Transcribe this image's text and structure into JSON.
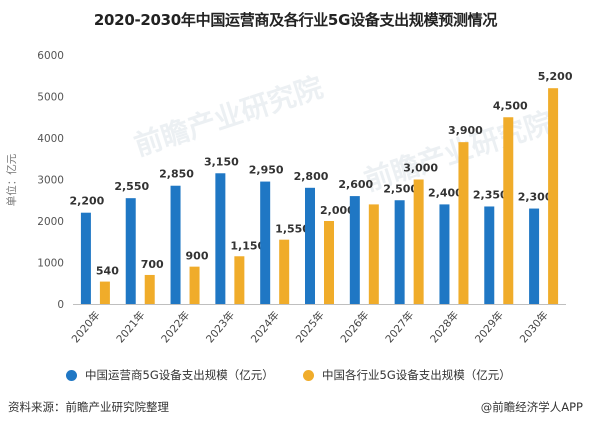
{
  "chart_data": {
    "type": "bar",
    "title": "2020-2030年中国运营商及各行业5G设备支出规模预测情况",
    "ylabel": "单位：亿元",
    "ylim": [
      0,
      6000
    ],
    "yticks": [
      0,
      1000,
      2000,
      3000,
      4000,
      5000,
      6000
    ],
    "categories": [
      "2020年",
      "2021年",
      "2022年",
      "2023年",
      "2024年",
      "2025年",
      "2026年",
      "2027年",
      "2028年",
      "2029年",
      "2030年"
    ],
    "series": [
      {
        "name": "中国运营商5G设备支出规模（亿元）",
        "color": "#1f77c4",
        "values": [
          2200,
          2550,
          2850,
          3150,
          2950,
          2800,
          2600,
          2500,
          2400,
          2350,
          2300
        ],
        "labels": [
          "2,200",
          "2,550",
          "2,850",
          "3,150",
          "2,950",
          "2,800",
          "2,600",
          "2,500",
          "2,400",
          "2,350",
          "2,300"
        ]
      },
      {
        "name": "中国各行业5G设备支出规模（亿元）",
        "color": "#f0ac2a",
        "values": [
          540,
          700,
          900,
          1150,
          1550,
          2000,
          2400,
          3000,
          3900,
          4500,
          5200
        ],
        "labels": [
          "540",
          "700",
          "900",
          "1,150",
          "1,550",
          "2,000",
          "",
          "3,000",
          "3,900",
          "4,500",
          "5,200"
        ]
      }
    ],
    "grid": false,
    "legend": "bottom"
  },
  "footer": {
    "source": "资料来源：前瞻产业研究院整理",
    "brand": "@前瞻经济学人APP"
  },
  "watermark": "前瞻产业研究院"
}
